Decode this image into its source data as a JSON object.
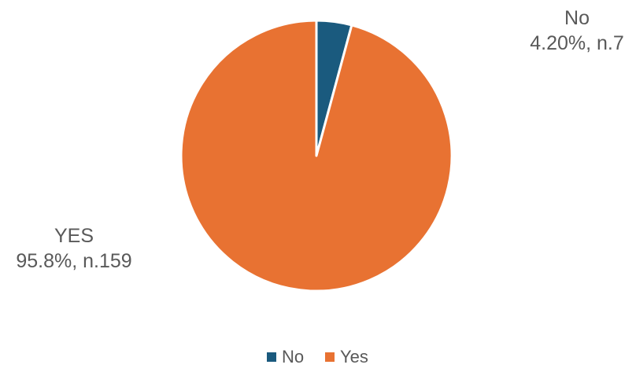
{
  "chart_data": {
    "type": "pie",
    "title": "",
    "slices": [
      {
        "label": "No",
        "value": 4.2,
        "count": 7,
        "color": "#1a5a7e",
        "data_label_line1": "No",
        "data_label_line2": "4.20%, n.7"
      },
      {
        "label": "Yes",
        "value": 95.8,
        "count": 159,
        "color": "#e87232",
        "data_label_line1": "YES",
        "data_label_line2": "95.8%, n.159"
      }
    ],
    "legend": {
      "placement": "bottom",
      "entries": [
        "No",
        "Yes"
      ]
    },
    "start_angle": "12 o'clock",
    "direction": "clockwise",
    "label_color": "#595959",
    "background": "#ffffff"
  }
}
